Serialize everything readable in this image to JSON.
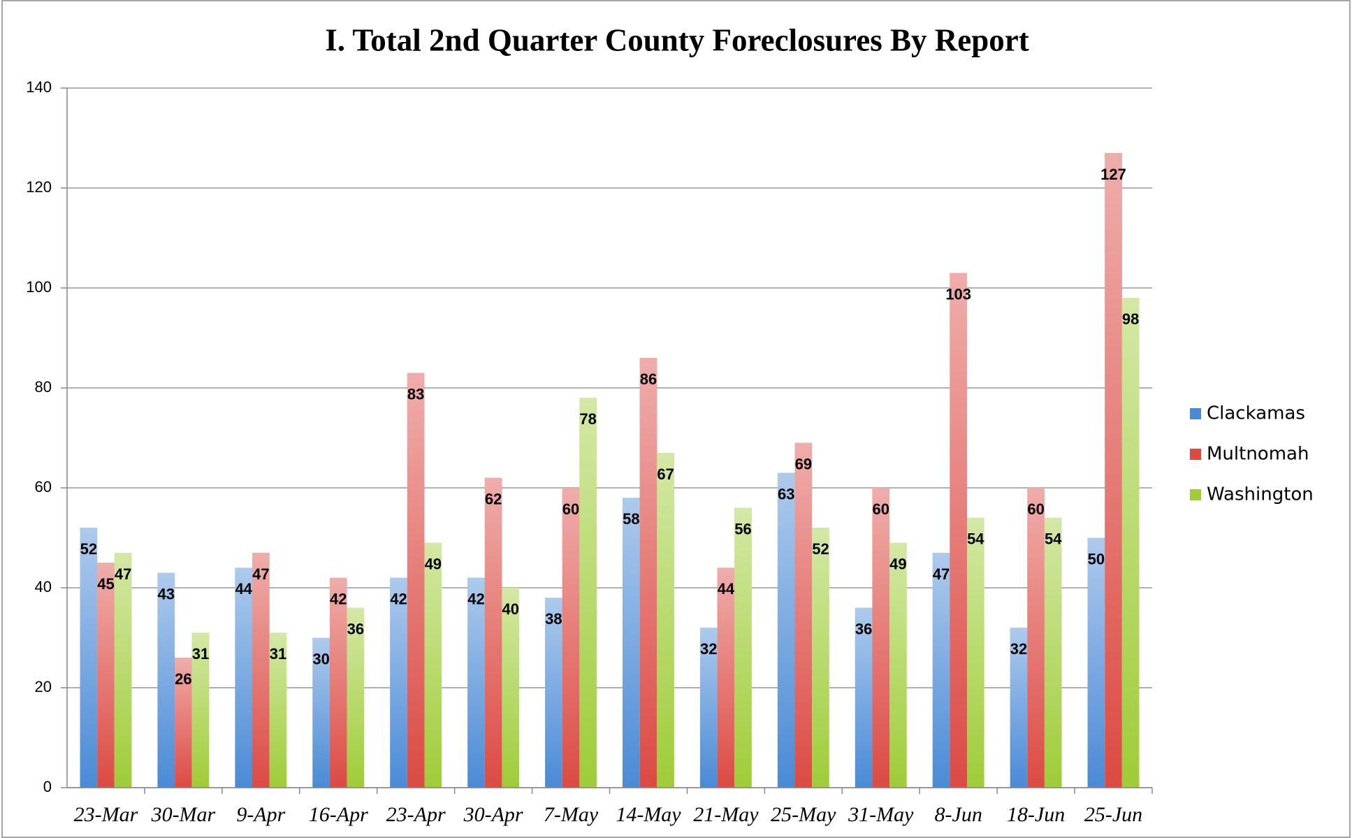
{
  "chart_data": {
    "type": "bar",
    "title": "I. Total 2nd Quarter County Foreclosures By Report",
    "categories": [
      "23-Mar",
      "30-Mar",
      "9-Apr",
      "16-Apr",
      "23-Apr",
      "30-Apr",
      "7-May",
      "14-May",
      "21-May",
      "25-May",
      "31-May",
      "8-Jun",
      "18-Jun",
      "25-Jun"
    ],
    "series": [
      {
        "name": "Clackamas",
        "color": "#4a8ad6",
        "values": [
          52,
          43,
          44,
          30,
          42,
          42,
          38,
          58,
          32,
          63,
          36,
          47,
          32,
          50
        ]
      },
      {
        "name": "Multnomah",
        "color": "#dc4a44",
        "values": [
          45,
          26,
          47,
          42,
          83,
          62,
          60,
          86,
          44,
          69,
          60,
          103,
          60,
          127
        ]
      },
      {
        "name": "Washington",
        "color": "#9fcc38",
        "values": [
          47,
          31,
          31,
          36,
          49,
          40,
          78,
          67,
          56,
          52,
          49,
          54,
          54,
          98
        ]
      }
    ],
    "ylim": [
      0,
      140
    ],
    "yticks": [
      0,
      20,
      40,
      60,
      80,
      100,
      120,
      140
    ],
    "grid": true,
    "legend": "right"
  }
}
